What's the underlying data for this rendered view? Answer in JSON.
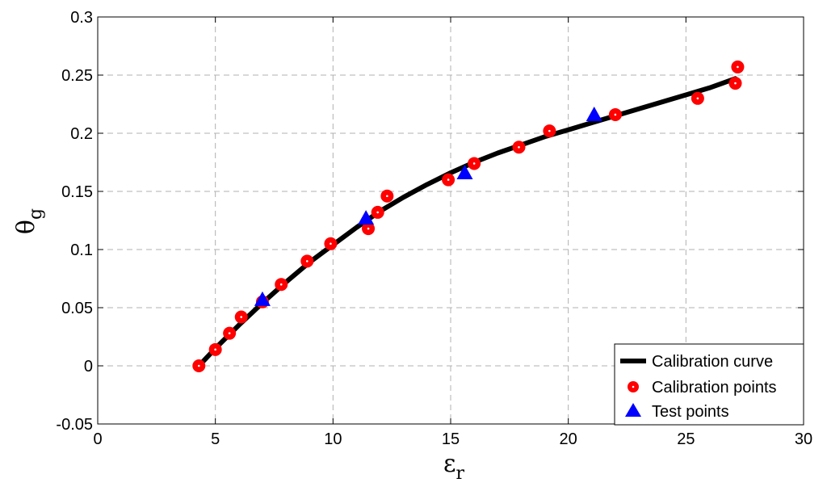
{
  "chart_data": {
    "type": "scatter",
    "xlabel": "ε",
    "xlabel_sub": "r",
    "ylabel": "θ",
    "ylabel_sub": "g",
    "xlim": [
      0,
      30
    ],
    "ylim": [
      -0.05,
      0.3
    ],
    "xticks": [
      0,
      5,
      10,
      15,
      20,
      25,
      30
    ],
    "yticks": [
      -0.05,
      0,
      0.05,
      0.1,
      0.15,
      0.2,
      0.25,
      0.3
    ],
    "xtick_labels": [
      "0",
      "5",
      "10",
      "15",
      "20",
      "25",
      "30"
    ],
    "ytick_labels": [
      "-0.05",
      "0",
      "0.05",
      "0.1",
      "0.15",
      "0.2",
      "0.25",
      "0.3"
    ],
    "grid": true,
    "legend_position": "bottom-right",
    "series": [
      {
        "name": "Calibration curve",
        "kind": "line",
        "color": "#000000",
        "x": [
          4.3,
          5,
          6,
          7,
          8,
          9,
          10,
          11,
          12,
          13,
          14,
          15,
          16,
          17,
          18,
          19,
          20,
          21,
          22,
          23,
          24,
          25,
          26,
          27.1
        ],
        "y": [
          0.0,
          0.015,
          0.035,
          0.054,
          0.072,
          0.089,
          0.104,
          0.119,
          0.133,
          0.145,
          0.156,
          0.166,
          0.175,
          0.183,
          0.19,
          0.197,
          0.203,
          0.209,
          0.215,
          0.221,
          0.227,
          0.233,
          0.239,
          0.247
        ]
      },
      {
        "name": "Calibration points",
        "kind": "circle",
        "color": "#ff0000",
        "x": [
          4.3,
          5.0,
          5.6,
          6.1,
          7.0,
          7.8,
          8.9,
          9.9,
          11.5,
          11.9,
          12.3,
          14.9,
          16.0,
          17.9,
          19.2,
          22.0,
          25.5,
          27.1,
          27.2
        ],
        "y": [
          0.0,
          0.014,
          0.028,
          0.042,
          0.055,
          0.07,
          0.09,
          0.105,
          0.118,
          0.132,
          0.146,
          0.16,
          0.174,
          0.188,
          0.202,
          0.216,
          0.23,
          0.243,
          0.257
        ]
      },
      {
        "name": "Test points",
        "kind": "triangle",
        "color": "#0000ff",
        "x": [
          7.0,
          11.4,
          15.6,
          21.1
        ],
        "y": [
          0.057,
          0.127,
          0.166,
          0.216
        ]
      }
    ]
  }
}
